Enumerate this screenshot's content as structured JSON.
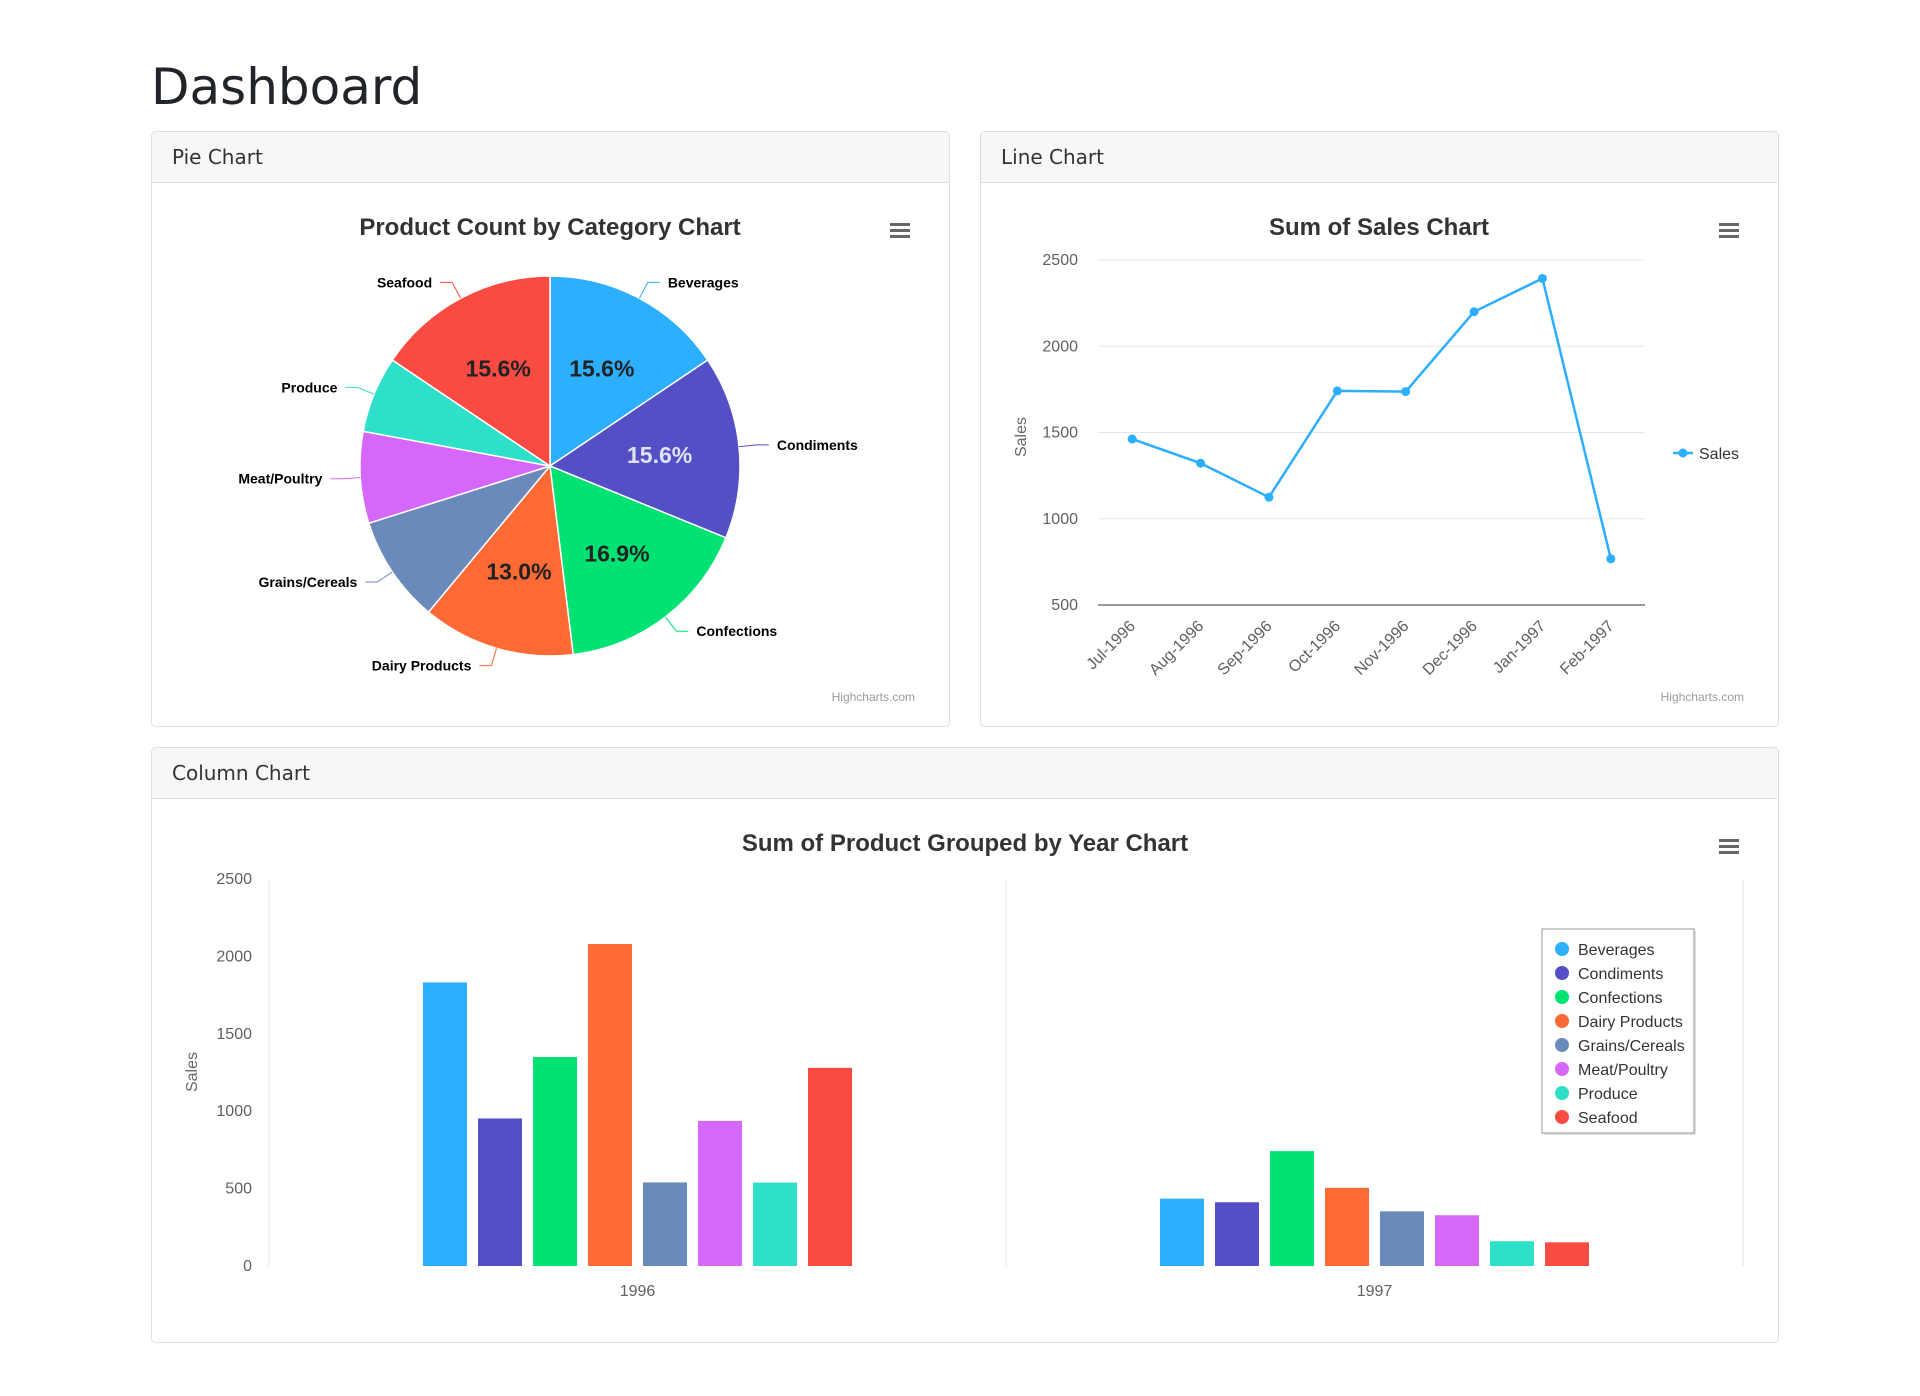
{
  "page": {
    "title": "Dashboard"
  },
  "menu_icon": "hamburger-menu-icon",
  "credits": "Highcharts.com",
  "pie_card": {
    "header": "Pie Chart",
    "chart_data": {
      "type": "pie",
      "title": "Product Count by Category Chart",
      "slices": [
        {
          "name": "Beverages",
          "value": 15.6,
          "label": "15.6%",
          "color": "#2caffe"
        },
        {
          "name": "Condiments",
          "value": 15.6,
          "label": "15.6%",
          "color": "#544fc5"
        },
        {
          "name": "Confections",
          "value": 16.9,
          "label": "16.9%",
          "color": "#00e272"
        },
        {
          "name": "Dairy Products",
          "value": 13.0,
          "label": "13.0%",
          "color": "#fe6a35"
        },
        {
          "name": "Grains/Cereals",
          "value": 9.1,
          "label": "",
          "color": "#6b8abc"
        },
        {
          "name": "Meat/Poultry",
          "value": 7.8,
          "label": "",
          "color": "#d568fb"
        },
        {
          "name": "Produce",
          "value": 6.5,
          "label": "",
          "color": "#2ee0ca"
        },
        {
          "name": "Seafood",
          "value": 15.6,
          "label": "15.6%",
          "color": "#fa4b42"
        }
      ]
    }
  },
  "line_card": {
    "header": "Line Chart",
    "chart_data": {
      "type": "line",
      "title": "Sum of Sales Chart",
      "ylabel": "Sales",
      "ylim": [
        500,
        2500
      ],
      "yticks": [
        "500",
        "1000",
        "1500",
        "2000",
        "2500"
      ],
      "categories": [
        "Jul-1996",
        "Aug-1996",
        "Sep-1996",
        "Oct-1996",
        "Nov-1996",
        "Dec-1996",
        "Jan-1997",
        "Feb-1997"
      ],
      "series": [
        {
          "name": "Sales",
          "color": "#2caffe",
          "values": [
            1462,
            1322,
            1125,
            1741,
            1737,
            2200,
            2393,
            768
          ]
        }
      ],
      "legend": "right"
    }
  },
  "column_card": {
    "header": "Column Chart",
    "chart_data": {
      "type": "bar",
      "title": "Sum of Product Grouped by Year Chart",
      "ylabel": "Sales",
      "ylim": [
        0,
        2500
      ],
      "yticks": [
        "0",
        "500",
        "1000",
        "1500",
        "2000",
        "2500"
      ],
      "categories": [
        "1996",
        "1997"
      ],
      "series": [
        {
          "name": "Beverages",
          "color": "#2caffe",
          "values": [
            1832,
            435
          ]
        },
        {
          "name": "Condiments",
          "color": "#544fc5",
          "values": [
            953,
            412
          ]
        },
        {
          "name": "Confections",
          "color": "#00e272",
          "values": [
            1350,
            742
          ]
        },
        {
          "name": "Dairy Products",
          "color": "#fe6a35",
          "values": [
            2080,
            505
          ]
        },
        {
          "name": "Grains/Cereals",
          "color": "#6b8abc",
          "values": [
            540,
            353
          ]
        },
        {
          "name": "Meat/Poultry",
          "color": "#d568fb",
          "values": [
            937,
            328
          ]
        },
        {
          "name": "Produce",
          "color": "#2ee0ca",
          "values": [
            539,
            160
          ]
        },
        {
          "name": "Seafood",
          "color": "#fa4b42",
          "values": [
            1280,
            153
          ]
        }
      ],
      "legend": "top-right"
    }
  }
}
